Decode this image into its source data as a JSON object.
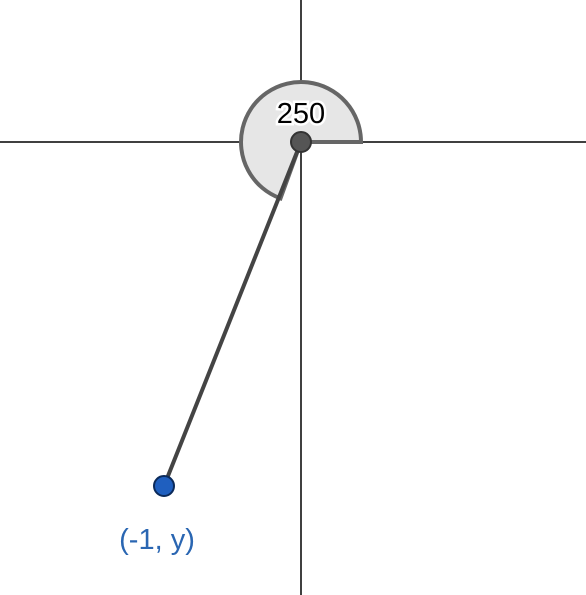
{
  "diagram": {
    "angle_label": "250",
    "point_label": "(-1, y)",
    "angle_degrees": 250,
    "colors": {
      "axis": "#000000",
      "segment": "#444444",
      "sector_fill": "#e6e6e6",
      "sector_stroke": "#666666",
      "vertex_fill": "#555555",
      "point_fill": "#1f5fbf",
      "point_stroke": "#0b2a5a",
      "point_label": "#2a66b2",
      "angle_label": "#000000"
    }
  }
}
